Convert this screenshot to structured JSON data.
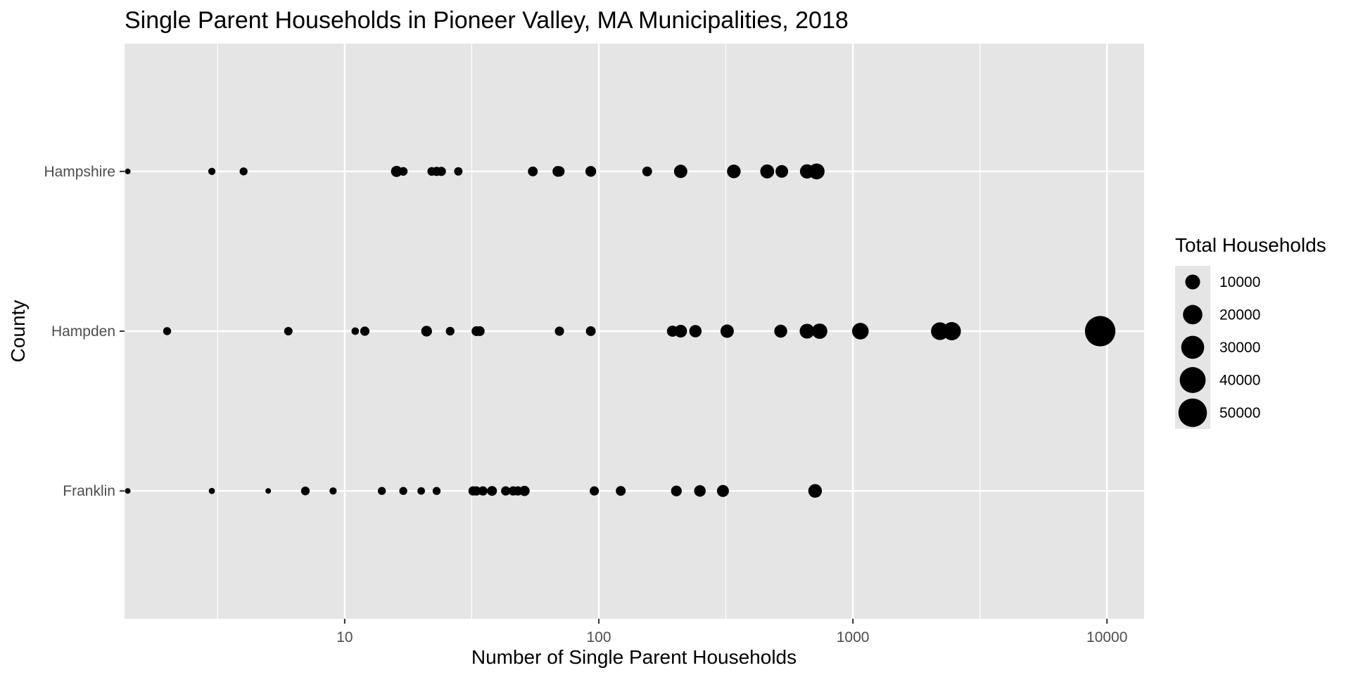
{
  "chart_data": {
    "type": "scatter",
    "title": "Single Parent Households in Pioneer Valley, MA Municipalities, 2018",
    "xlabel": "Number of Single Parent Households",
    "ylabel": "County",
    "x_scale": "log10",
    "xlim": [
      1.36,
      14000
    ],
    "x_major_ticks": [
      10,
      100,
      1000,
      10000
    ],
    "x_tick_labels": [
      "10",
      "100",
      "1000",
      "10000"
    ],
    "x_minor_ticks": [
      3.16,
      31.6,
      316,
      3162
    ],
    "categories": [
      "Franklin",
      "Hampden",
      "Hampshire"
    ],
    "grid": true,
    "panel_background": "#e5e5e5",
    "grid_color": "#ffffff",
    "point_color": "#000000",
    "legend": {
      "title": "Total Households",
      "position": "right",
      "sizes": [
        10000,
        20000,
        30000,
        40000,
        50000
      ],
      "labels": [
        "10000",
        "20000",
        "30000",
        "40000",
        "50000"
      ]
    },
    "size_scale": {
      "min_total": 300,
      "max_total": 60000
    },
    "series": [
      {
        "category": "Hampshire",
        "points": [
          {
            "x": 1.4,
            "total": 200
          },
          {
            "x": 3,
            "total": 1000
          },
          {
            "x": 4,
            "total": 1500
          },
          {
            "x": 16,
            "total": 4500
          },
          {
            "x": 17,
            "total": 2000
          },
          {
            "x": 22,
            "total": 2000
          },
          {
            "x": 23,
            "total": 2500
          },
          {
            "x": 24,
            "total": 2500
          },
          {
            "x": 28,
            "total": 1800
          },
          {
            "x": 55,
            "total": 3000
          },
          {
            "x": 69,
            "total": 4000
          },
          {
            "x": 70,
            "total": 3500
          },
          {
            "x": 93,
            "total": 4000
          },
          {
            "x": 155,
            "total": 3000
          },
          {
            "x": 210,
            "total": 7500
          },
          {
            "x": 340,
            "total": 8000
          },
          {
            "x": 460,
            "total": 8500
          },
          {
            "x": 525,
            "total": 6500
          },
          {
            "x": 660,
            "total": 9000
          },
          {
            "x": 720,
            "total": 12000
          }
        ]
      },
      {
        "category": "Hampden",
        "points": [
          {
            "x": 2,
            "total": 1500
          },
          {
            "x": 6,
            "total": 1800
          },
          {
            "x": 11,
            "total": 1200
          },
          {
            "x": 12,
            "total": 2500
          },
          {
            "x": 21,
            "total": 4000
          },
          {
            "x": 26,
            "total": 2000
          },
          {
            "x": 33,
            "total": 3000
          },
          {
            "x": 34,
            "total": 3000
          },
          {
            "x": 70,
            "total": 2500
          },
          {
            "x": 93,
            "total": 3000
          },
          {
            "x": 195,
            "total": 4500
          },
          {
            "x": 210,
            "total": 6500
          },
          {
            "x": 240,
            "total": 6000
          },
          {
            "x": 320,
            "total": 7500
          },
          {
            "x": 520,
            "total": 7000
          },
          {
            "x": 660,
            "total": 10000
          },
          {
            "x": 740,
            "total": 11000
          },
          {
            "x": 1070,
            "total": 13500
          },
          {
            "x": 2200,
            "total": 16000
          },
          {
            "x": 2450,
            "total": 17000
          },
          {
            "x": 9400,
            "total": 58000
          }
        ]
      },
      {
        "category": "Franklin",
        "points": [
          {
            "x": 1.4,
            "total": 200
          },
          {
            "x": 3,
            "total": 500
          },
          {
            "x": 5,
            "total": 300
          },
          {
            "x": 7,
            "total": 2000
          },
          {
            "x": 9,
            "total": 1000
          },
          {
            "x": 14,
            "total": 1500
          },
          {
            "x": 17,
            "total": 1500
          },
          {
            "x": 20,
            "total": 1200
          },
          {
            "x": 23,
            "total": 1500
          },
          {
            "x": 32,
            "total": 2500
          },
          {
            "x": 33,
            "total": 2500
          },
          {
            "x": 35,
            "total": 2500
          },
          {
            "x": 38,
            "total": 3000
          },
          {
            "x": 43,
            "total": 2500
          },
          {
            "x": 46,
            "total": 2500
          },
          {
            "x": 48,
            "total": 2500
          },
          {
            "x": 51,
            "total": 3500
          },
          {
            "x": 96,
            "total": 2500
          },
          {
            "x": 122,
            "total": 3000
          },
          {
            "x": 202,
            "total": 4000
          },
          {
            "x": 250,
            "total": 5000
          },
          {
            "x": 308,
            "total": 5500
          },
          {
            "x": 710,
            "total": 8000
          }
        ]
      }
    ]
  }
}
